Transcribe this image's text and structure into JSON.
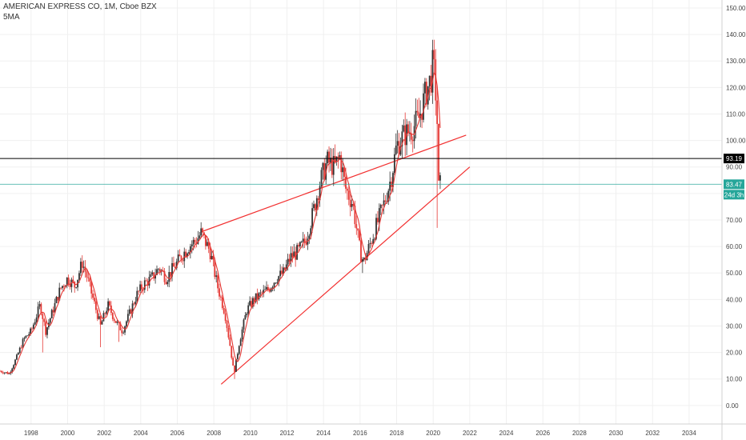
{
  "header": {
    "title": "AMERICAN EXPRESS CO, 1M, Cboe BZX",
    "indicator": "5MA"
  },
  "colors": {
    "up": "#333333",
    "down": "#e53935",
    "trendline": "#f23030",
    "ma": "#e53935",
    "price_line": "#26a69a",
    "hline": "#000000",
    "grid": "#f0f0f0"
  },
  "badges": {
    "hline_value": "93.19",
    "last_price": "83.47",
    "countdown": "24d 3h"
  },
  "chart_data": {
    "type": "candlestick",
    "x_ticks": [
      "1998",
      "2000",
      "2002",
      "2004",
      "2006",
      "2008",
      "2010",
      "2012",
      "2014",
      "2016",
      "2018",
      "2020",
      "2022",
      "2024",
      "2026",
      "2028",
      "2030",
      "2032",
      "2034"
    ],
    "y_ticks": [
      "0.00",
      "10.00",
      "20.00",
      "30.00",
      "40.00",
      "50.00",
      "60.00",
      "70.00",
      "80.00",
      "90.00",
      "100.00",
      "110.00",
      "120.00",
      "130.00",
      "140.00",
      "150.00"
    ],
    "xlim": [
      1996.3,
      2035.8
    ],
    "ylim": [
      -7,
      153
    ],
    "price_path": [
      [
        1996.3,
        13
      ],
      [
        1996.8,
        12
      ],
      [
        1997.2,
        18
      ],
      [
        1997.6,
        25
      ],
      [
        1998.0,
        28
      ],
      [
        1998.5,
        38
      ],
      [
        1998.8,
        28
      ],
      [
        1999.2,
        36
      ],
      [
        1999.6,
        44
      ],
      [
        2000.0,
        48
      ],
      [
        2000.4,
        45
      ],
      [
        2000.8,
        54
      ],
      [
        2001.0,
        50
      ],
      [
        2001.4,
        40
      ],
      [
        2001.8,
        30
      ],
      [
        2002.2,
        38
      ],
      [
        2002.6,
        32
      ],
      [
        2003.0,
        28
      ],
      [
        2003.4,
        35
      ],
      [
        2003.8,
        42
      ],
      [
        2004.2,
        46
      ],
      [
        2004.6,
        48
      ],
      [
        2005.0,
        52
      ],
      [
        2005.4,
        48
      ],
      [
        2005.8,
        52
      ],
      [
        2006.2,
        56
      ],
      [
        2006.6,
        60
      ],
      [
        2007.0,
        62
      ],
      [
        2007.3,
        65
      ],
      [
        2007.8,
        58
      ],
      [
        2008.2,
        45
      ],
      [
        2008.6,
        35
      ],
      [
        2008.9,
        22
      ],
      [
        2009.1,
        12
      ],
      [
        2009.4,
        24
      ],
      [
        2009.8,
        36
      ],
      [
        2010.2,
        40
      ],
      [
        2010.6,
        42
      ],
      [
        2011.0,
        44
      ],
      [
        2011.4,
        48
      ],
      [
        2011.8,
        50
      ],
      [
        2012.2,
        56
      ],
      [
        2012.6,
        58
      ],
      [
        2013.0,
        62
      ],
      [
        2013.4,
        72
      ],
      [
        2013.8,
        84
      ],
      [
        2014.2,
        92
      ],
      [
        2014.6,
        90
      ],
      [
        2014.9,
        94
      ],
      [
        2015.2,
        82
      ],
      [
        2015.6,
        76
      ],
      [
        2016.0,
        58
      ],
      [
        2016.2,
        54
      ],
      [
        2016.5,
        60
      ],
      [
        2016.9,
        68
      ],
      [
        2017.3,
        76
      ],
      [
        2017.7,
        86
      ],
      [
        2018.0,
        98
      ],
      [
        2018.4,
        102
      ],
      [
        2018.8,
        104
      ],
      [
        2019.2,
        108
      ],
      [
        2019.6,
        118
      ],
      [
        2019.9,
        124
      ],
      [
        2020.0,
        130
      ],
      [
        2020.2,
        112
      ],
      [
        2020.3,
        82
      ],
      [
        2020.4,
        83.47
      ]
    ],
    "events": [
      {
        "year": 1998.6,
        "low": 20
      },
      {
        "year": 2001.8,
        "low": 22
      },
      {
        "year": 2002.8,
        "low": 24
      },
      {
        "year": 2009.1,
        "low": 10
      },
      {
        "year": 2016.1,
        "low": 50
      },
      {
        "year": 2020.2,
        "low": 67
      },
      {
        "year": 2020.0,
        "high": 138
      }
    ],
    "trendlines": [
      {
        "x1": 2007.3,
        "y1": 65.5,
        "x2": 2021.8,
        "y2": 102
      },
      {
        "x1": 2008.4,
        "y1": 8,
        "x2": 2022.0,
        "y2": 90
      }
    ],
    "hline": 93.19,
    "last_price": 83.47
  }
}
